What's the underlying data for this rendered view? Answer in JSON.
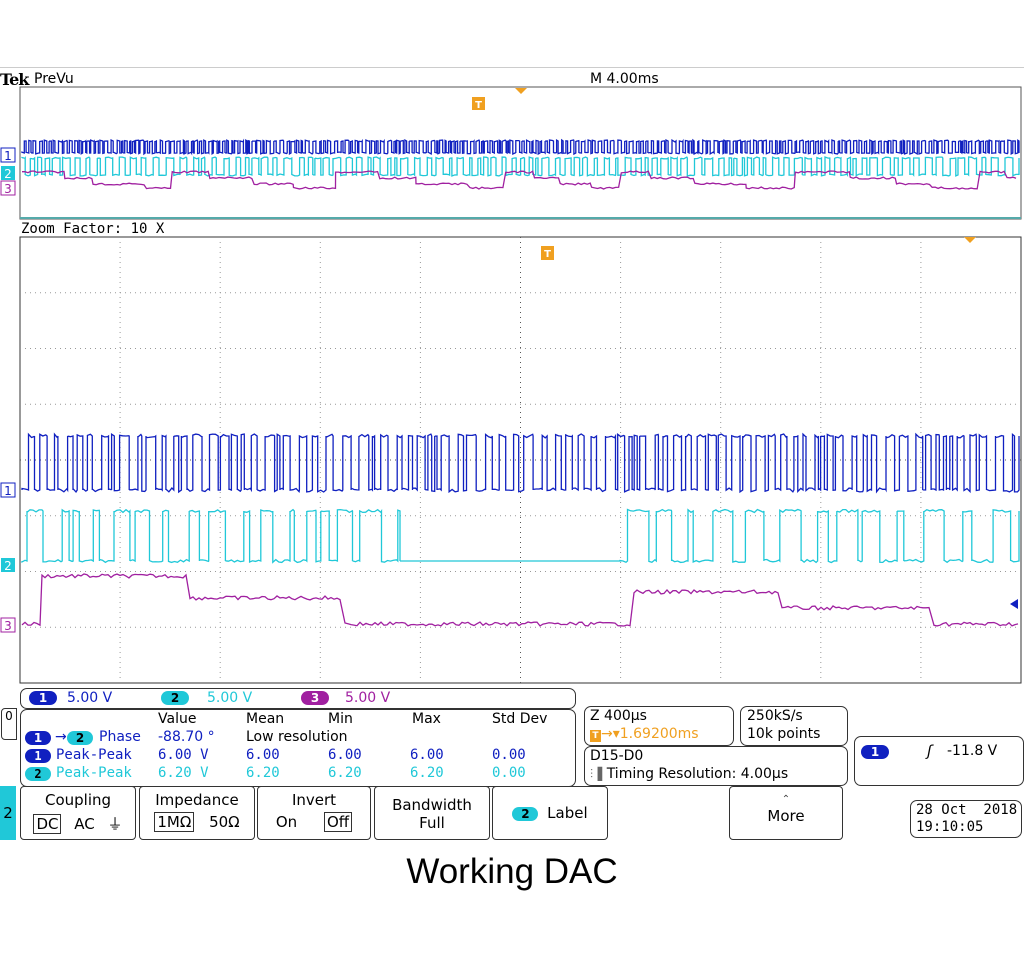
{
  "header": {
    "brand": "Tek",
    "mode": "PreVu",
    "timebase": "M 4.00ms"
  },
  "zoom": {
    "label": "Zoom Factor: 10 X"
  },
  "channels": [
    {
      "id": "1",
      "color": "#1020c0",
      "scale": "5.00 V"
    },
    {
      "id": "2",
      "color": "#20c8d8",
      "scale": "5.00 V"
    },
    {
      "id": "3",
      "color": "#a020a0",
      "scale": "5.00 V"
    }
  ],
  "ground_marker": "0",
  "trigger_marker": "T",
  "measurements": {
    "headers": [
      "Value",
      "Mean",
      "Min",
      "Max",
      "Std Dev"
    ],
    "note": "Low resolution",
    "rows": [
      {
        "ch_a": "1",
        "ch_b": "2",
        "name": "Phase",
        "value": "-88.70 °",
        "mean": "",
        "min": "",
        "max": "",
        "std": ""
      },
      {
        "ch_a": "1",
        "name": "Peak-Peak",
        "value": "6.00 V",
        "mean": "6.00",
        "min": "6.00",
        "max": "6.00",
        "std": "0.00"
      },
      {
        "ch_a": "2",
        "name": "Peak-Peak",
        "value": "6.20 V",
        "mean": "6.20",
        "min": "6.20",
        "max": "6.20",
        "std": "0.00"
      }
    ]
  },
  "zoom_info": {
    "scale": "Z 400µs",
    "position": "1.69200ms"
  },
  "acquisition": {
    "rate": "250kS/s",
    "points": "10k points"
  },
  "digital": {
    "channels": "D15-D0",
    "timing": "Timing Resolution: 4.00µs"
  },
  "trigger": {
    "channel": "1",
    "level": "-11.8 V"
  },
  "menu": {
    "selected_channel": "2",
    "coupling": {
      "title": "Coupling",
      "options": [
        "DC",
        "AC"
      ]
    },
    "impedance": {
      "title": "Impedance",
      "options": [
        "1MΩ",
        "50Ω"
      ]
    },
    "invert": {
      "title": "Invert",
      "options": [
        "On",
        "Off"
      ]
    },
    "bandwidth": {
      "title": "Bandwidth",
      "value": "Full"
    },
    "label": {
      "channel": "2",
      "text": "Label"
    },
    "more": "More"
  },
  "datetime": {
    "date": "28 Oct  2018",
    "time": "19:10:05"
  },
  "caption": "Working DAC"
}
